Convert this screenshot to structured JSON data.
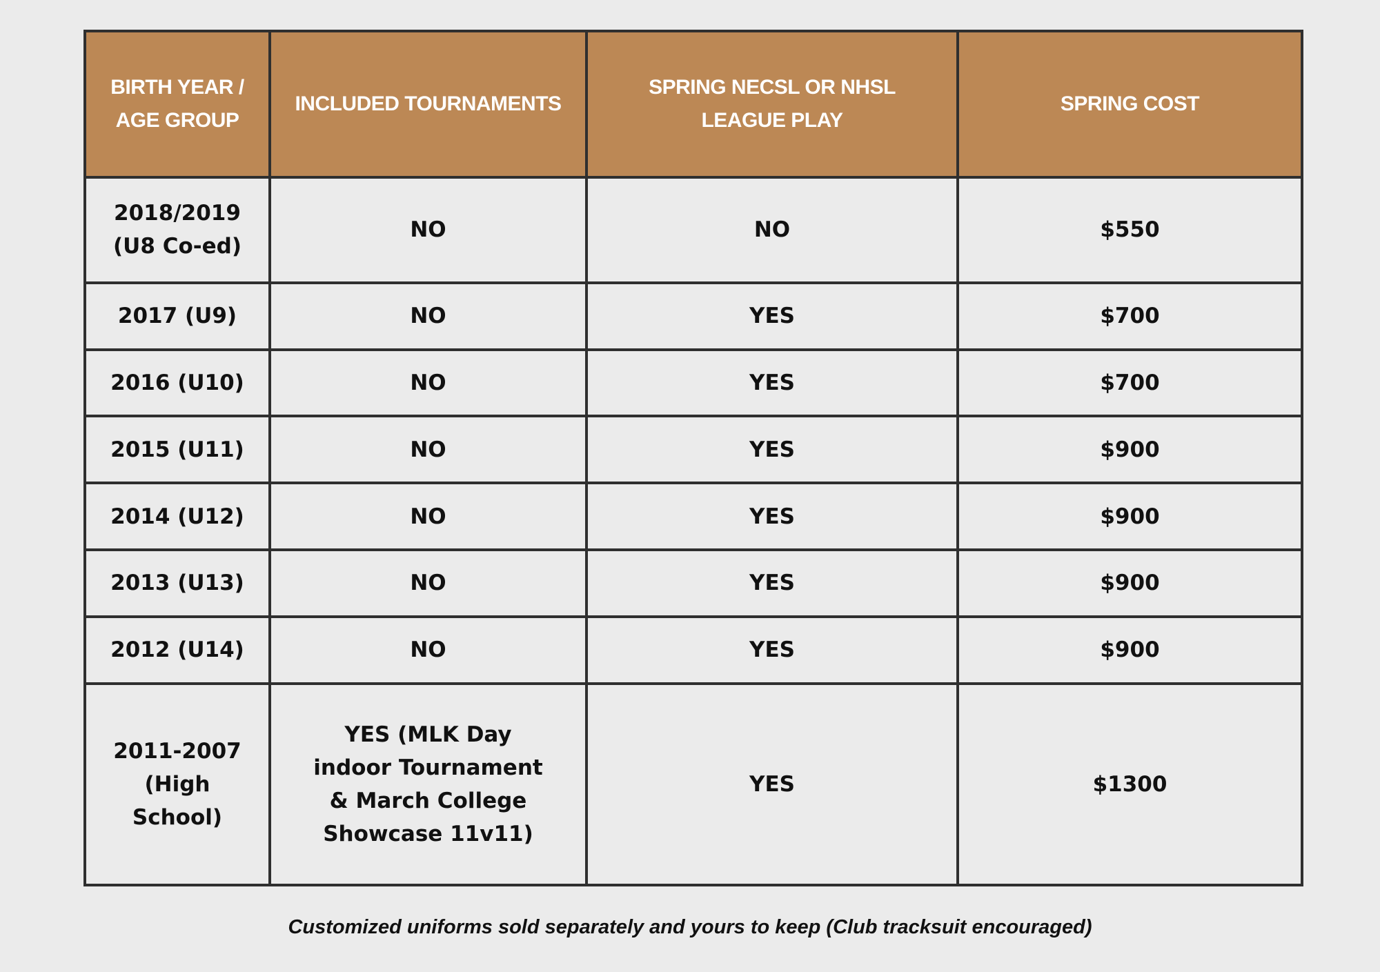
{
  "colors": {
    "header_bg": "#bc8855",
    "page_bg": "#ebebeb",
    "border": "#2f2f2f"
  },
  "table": {
    "headers": [
      "BIRTH YEAR / AGE GROUP",
      "INCLUDED TOURNAMENTS",
      "SPRING NECSL OR NHSL LEAGUE PLAY",
      "SPRING COST"
    ],
    "rows": [
      [
        "2018/2019 (U8 Co-ed)",
        "NO",
        "NO",
        "$550"
      ],
      [
        "2017 (U9)",
        "NO",
        "YES",
        "$700"
      ],
      [
        "2016 (U10)",
        "NO",
        "YES",
        "$700"
      ],
      [
        "2015 (U11)",
        "NO",
        "YES",
        "$900"
      ],
      [
        "2014 (U12)",
        "NO",
        "YES",
        "$900"
      ],
      [
        "2013 (U13)",
        "NO",
        "YES",
        "$900"
      ],
      [
        "2012 (U14)",
        "NO",
        "YES",
        "$900"
      ],
      [
        "2011-2007 (High School)",
        "YES (MLK Day indoor Tournament & March College Showcase 11v11)",
        "YES",
        "$1300"
      ]
    ]
  },
  "footer": "Customized uniforms sold separately and yours to keep (Club tracksuit encouraged)"
}
